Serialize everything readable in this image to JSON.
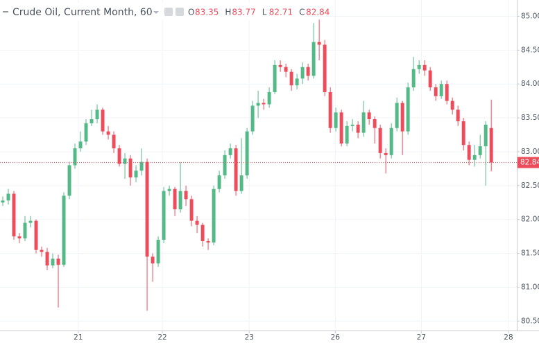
{
  "chart_data": {
    "type": "candlestick",
    "title": "Crude Oil, Current Month, 60",
    "ohlc_labels": [
      "O",
      "H",
      "L",
      "C"
    ],
    "up_color": "#53b987",
    "down_color": "#eb4d5c",
    "grid": true,
    "x": [
      0,
      1,
      2,
      3,
      4,
      5,
      6,
      7,
      8,
      9,
      10,
      11,
      12,
      13,
      14,
      15,
      16,
      17,
      18,
      19,
      20,
      21,
      22,
      23,
      24,
      25,
      26,
      27,
      28,
      29,
      30,
      31,
      32,
      33,
      34,
      35,
      36,
      37,
      38,
      39,
      40,
      41,
      42,
      43,
      44,
      45,
      46,
      47,
      48,
      49,
      50,
      51,
      52,
      53,
      54,
      55,
      56,
      57,
      58,
      59,
      60,
      61,
      62,
      63,
      64,
      65,
      66,
      67,
      68,
      69,
      70,
      71,
      72,
      73,
      74,
      75,
      76,
      77,
      78,
      79,
      80,
      81,
      82,
      83,
      84,
      85,
      86,
      87,
      88
    ],
    "open": [
      82.25,
      82.28,
      82.38,
      81.75,
      81.72,
      81.95,
      81.98,
      81.55,
      81.52,
      81.32,
      81.42,
      81.33,
      82.35,
      82.8,
      83.05,
      83.15,
      83.42,
      83.48,
      83.62,
      83.3,
      83.25,
      83.05,
      82.82,
      82.9,
      82.62,
      82.72,
      82.85,
      81.45,
      81.35,
      81.7,
      82.42,
      82.45,
      82.15,
      82.42,
      82.3,
      81.98,
      81.92,
      81.68,
      81.66,
      82.45,
      82.65,
      82.95,
      83.05,
      82.42,
      82.65,
      83.3,
      83.68,
      83.72,
      83.7,
      83.88,
      84.28,
      84.25,
      84.18,
      83.98,
      84.08,
      84.25,
      84.12,
      84.62,
      84.58,
      83.88,
      83.35,
      83.58,
      83.12,
      83.38,
      83.4,
      83.28,
      83.58,
      83.48,
      83.35,
      82.98,
      82.95,
      83.35,
      83.72,
      83.3,
      83.95,
      84.22,
      84.28,
      84.2,
      83.95,
      83.82,
      84.0,
      83.75,
      83.62,
      83.45,
      83.1,
      82.88,
      82.95,
      83.08,
      83.35
    ],
    "high": [
      82.34,
      82.45,
      82.42,
      81.8,
      82.05,
      82.05,
      82.0,
      81.6,
      81.58,
      81.5,
      81.48,
      82.4,
      82.85,
      83.12,
      83.3,
      83.48,
      83.62,
      83.7,
      83.65,
      83.38,
      83.3,
      83.1,
      82.98,
      82.95,
      82.8,
      83.05,
      82.9,
      81.5,
      81.75,
      82.48,
      82.5,
      82.48,
      82.85,
      82.5,
      82.35,
      82.05,
      81.95,
      81.72,
      82.5,
      82.72,
      83.02,
      83.12,
      83.1,
      83.2,
      83.35,
      83.75,
      83.9,
      83.78,
      83.95,
      84.35,
      84.35,
      84.3,
      84.22,
      84.15,
      84.32,
      84.3,
      84.9,
      84.95,
      84.65,
      83.95,
      83.65,
      83.62,
      83.45,
      83.48,
      83.45,
      83.75,
      83.62,
      83.52,
      83.4,
      83.05,
      83.42,
      83.8,
      83.75,
      84.02,
      84.4,
      84.35,
      84.35,
      84.25,
      84.0,
      84.05,
      84.05,
      83.8,
      83.68,
      83.5,
      83.15,
      83.1,
      83.25,
      83.45,
      83.77
    ],
    "low": [
      82.2,
      82.22,
      81.7,
      81.65,
      81.68,
      81.88,
      81.5,
      81.45,
      81.25,
      81.28,
      80.7,
      81.3,
      82.3,
      82.75,
      83.0,
      83.1,
      83.38,
      83.42,
      83.25,
      83.18,
      82.98,
      82.78,
      82.6,
      82.5,
      82.55,
      82.65,
      80.65,
      81.08,
      81.3,
      81.65,
      82.35,
      82.05,
      82.1,
      82.2,
      81.9,
      81.8,
      81.6,
      81.55,
      81.62,
      82.4,
      82.6,
      82.9,
      82.35,
      82.38,
      82.6,
      83.25,
      83.5,
      83.62,
      83.65,
      83.85,
      84.18,
      84.1,
      83.9,
      83.92,
      84.0,
      84.05,
      84.08,
      84.35,
      83.82,
      83.28,
      83.3,
      83.08,
      83.08,
      83.3,
      83.2,
      83.22,
      83.4,
      83.12,
      82.9,
      82.68,
      82.9,
      83.3,
      82.95,
      83.25,
      83.9,
      84.15,
      84.12,
      83.9,
      83.75,
      83.78,
      83.7,
      83.55,
      83.38,
      83.02,
      82.8,
      82.78,
      82.9,
      82.5,
      82.71
    ],
    "close": [
      82.28,
      82.38,
      81.75,
      81.72,
      81.95,
      81.98,
      81.55,
      81.52,
      81.32,
      81.42,
      81.33,
      82.35,
      82.8,
      83.05,
      83.15,
      83.42,
      83.48,
      83.62,
      83.3,
      83.25,
      83.05,
      82.82,
      82.9,
      82.62,
      82.72,
      82.85,
      81.45,
      81.35,
      81.7,
      82.42,
      82.45,
      82.15,
      82.42,
      82.3,
      81.98,
      81.92,
      81.68,
      81.66,
      82.45,
      82.65,
      82.95,
      83.05,
      82.42,
      82.65,
      83.3,
      83.68,
      83.72,
      83.7,
      83.88,
      84.28,
      84.25,
      84.18,
      83.98,
      84.08,
      84.25,
      84.12,
      84.62,
      84.58,
      83.88,
      83.35,
      83.58,
      83.12,
      83.38,
      83.4,
      83.28,
      83.58,
      83.48,
      83.35,
      82.98,
      82.95,
      83.35,
      83.72,
      83.3,
      83.95,
      84.22,
      84.28,
      84.2,
      83.95,
      83.82,
      84.0,
      83.75,
      83.62,
      83.45,
      83.1,
      82.88,
      82.95,
      83.08,
      83.4,
      82.84
    ],
    "xlim": [
      -0.5,
      92.6
    ],
    "xticks": [
      {
        "value": 13.6,
        "label": "21"
      },
      {
        "value": 28.75,
        "label": "22"
      },
      {
        "value": 44.4,
        "label": "23"
      },
      {
        "value": 59.9,
        "label": "26"
      },
      {
        "value": 75.4,
        "label": "27"
      },
      {
        "value": 91.1,
        "label": "28"
      }
    ],
    "ylim": [
      80.36,
      85.24
    ],
    "yticks": [
      {
        "value": 80.5,
        "label": "80.50"
      },
      {
        "value": 81,
        "label": "81.00"
      },
      {
        "value": 81.5,
        "label": "81.50"
      },
      {
        "value": 82,
        "label": "82.00"
      },
      {
        "value": 82.5,
        "label": "82.50"
      },
      {
        "value": 83,
        "label": "83.00"
      },
      {
        "value": 83.5,
        "label": "83.50"
      },
      {
        "value": 84,
        "label": "84.00"
      },
      {
        "value": 84.5,
        "label": "84.50"
      },
      {
        "value": 85,
        "label": "85.00"
      }
    ]
  }
}
